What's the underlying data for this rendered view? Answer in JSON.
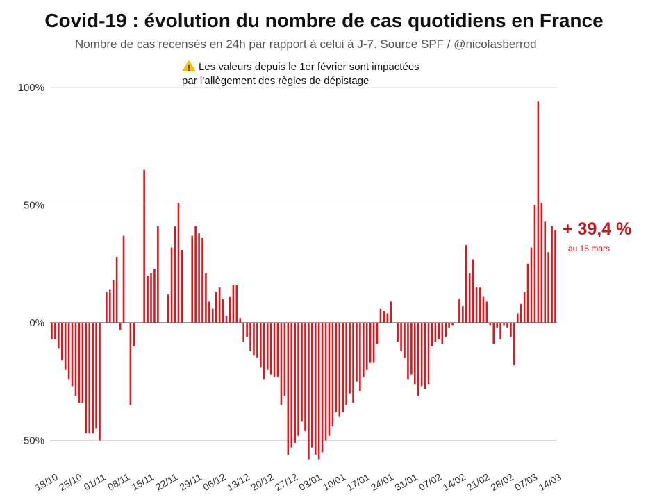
{
  "chart_data": {
    "type": "bar",
    "title": "Covid-19 : évolution du nombre de cas quotidiens en France",
    "subtitle": "Nombre de cas recensés en 24h par rapport à celui à J-7. Source SPF / @nicolasberrod",
    "note_line1": "Les valeurs depuis le 1er février sont impactées",
    "note_line2": "par l’allègement des règles de dépistage",
    "callout_value": "+ 39,4 %",
    "callout_date": "au 15 mars",
    "yticks": [
      {
        "value": 100,
        "label": "100%"
      },
      {
        "value": 50,
        "label": "50%"
      },
      {
        "value": 0,
        "label": "0%"
      },
      {
        "value": -50,
        "label": "-50%"
      }
    ],
    "ylim": [
      -55,
      100
    ],
    "xtick_labels": [
      {
        "day": 0,
        "label": "18/10"
      },
      {
        "day": 7,
        "label": "25/10"
      },
      {
        "day": 14,
        "label": "01/11"
      },
      {
        "day": 21,
        "label": "08/11"
      },
      {
        "day": 28,
        "label": "15/11"
      },
      {
        "day": 35,
        "label": "22/11"
      },
      {
        "day": 42,
        "label": "29/11"
      },
      {
        "day": 49,
        "label": "06/12"
      },
      {
        "day": 56,
        "label": "13/12"
      },
      {
        "day": 63,
        "label": "20/12"
      },
      {
        "day": 70,
        "label": "27/12"
      },
      {
        "day": 77,
        "label": "03/01"
      },
      {
        "day": 84,
        "label": "10/01"
      },
      {
        "day": 91,
        "label": "17/01"
      },
      {
        "day": 98,
        "label": "24/01"
      },
      {
        "day": 105,
        "label": "31/01"
      },
      {
        "day": 112,
        "label": "07/02"
      },
      {
        "day": 119,
        "label": "14/02"
      },
      {
        "day": 126,
        "label": "21/02"
      },
      {
        "day": 133,
        "label": "28/02"
      },
      {
        "day": 140,
        "label": "07/03"
      },
      {
        "day": 147,
        "label": "14/03"
      }
    ],
    "values": [
      -7,
      -7,
      -11,
      -16,
      -20,
      -24,
      -27,
      -31,
      -34,
      -34,
      -47,
      -47,
      -47,
      -45,
      -50,
      0,
      13,
      14,
      18,
      28,
      -3,
      37,
      0,
      -35,
      -10,
      0,
      0,
      65,
      20,
      21,
      23,
      41,
      0,
      0,
      12,
      32,
      41,
      51,
      31,
      0,
      0,
      37,
      41,
      38,
      36,
      21,
      9,
      6,
      13,
      15,
      10,
      3,
      11,
      16,
      16,
      2,
      -8,
      -6,
      -12,
      -14,
      -15,
      -19,
      -24,
      -20,
      -22,
      -23,
      -23,
      -35,
      -31,
      -56,
      -53,
      -51,
      -48,
      -42,
      -46,
      -58,
      -53,
      -56,
      -58,
      -55,
      -50,
      -48,
      -44,
      -38,
      -40,
      -38,
      -35,
      -30,
      -34,
      -25,
      -29,
      -23,
      -20,
      -17,
      -17,
      -9,
      6,
      5,
      4,
      9,
      0,
      -8,
      -12,
      -15,
      -24,
      -22,
      -26,
      -31,
      -27,
      -28,
      -26,
      -10,
      -8,
      -7,
      -9,
      -6,
      -2,
      -1,
      0,
      10,
      7,
      33,
      21,
      27,
      15,
      15,
      11,
      9,
      -1,
      -9,
      -2,
      -7,
      -1,
      -2,
      -6,
      -18,
      4,
      8,
      13,
      25,
      32,
      50,
      94,
      51,
      43,
      30,
      41,
      39.4
    ]
  }
}
